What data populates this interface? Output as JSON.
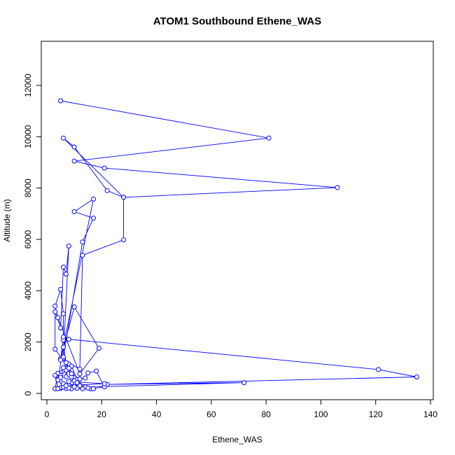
{
  "chart_data": {
    "type": "line",
    "title": "ATOM1 Southbound Ethene_WAS",
    "xlabel": "Ethene_WAS",
    "ylabel": "Altitude (m)",
    "xlim": [
      0,
      140
    ],
    "ylim": [
      0,
      12000
    ],
    "xticks": [
      0,
      20,
      40,
      60,
      80,
      100,
      120,
      140
    ],
    "yticks": [
      0,
      2000,
      4000,
      6000,
      8000,
      10000,
      12000
    ],
    "grid": false,
    "legend": "none",
    "marker": "open-circle",
    "series": [
      {
        "color": "#0000ff",
        "points": [
          [
            5,
            11400
          ],
          [
            81,
            9950
          ],
          [
            10,
            9050
          ],
          [
            21,
            8780
          ],
          [
            106,
            8020
          ],
          [
            28,
            7640
          ],
          [
            6,
            9950
          ],
          [
            10,
            9600
          ],
          [
            22,
            7900
          ],
          [
            28,
            7640
          ],
          [
            28,
            5980
          ],
          [
            13,
            5380
          ],
          [
            12,
            950
          ],
          [
            5,
            1350
          ],
          [
            10,
            3370
          ],
          [
            19,
            1760
          ],
          [
            12,
            760
          ],
          [
            4,
            2950
          ],
          [
            3,
            3400
          ],
          [
            5,
            4050
          ],
          [
            6,
            3100
          ],
          [
            6,
            2080
          ],
          [
            8,
            2110
          ],
          [
            121,
            930
          ],
          [
            135,
            640
          ],
          [
            22,
            350
          ],
          [
            72,
            420
          ],
          [
            13,
            240
          ],
          [
            3,
            1720
          ],
          [
            3,
            3180
          ],
          [
            5,
            2550
          ],
          [
            6,
            4920
          ],
          [
            7,
            4650
          ],
          [
            8,
            5740
          ],
          [
            6,
            1420
          ],
          [
            13,
            5900
          ],
          [
            17,
            6830
          ],
          [
            10,
            7080
          ],
          [
            17,
            7570
          ],
          [
            5,
            1300
          ],
          [
            6,
            2200
          ],
          [
            7,
            650
          ],
          [
            8,
            1150
          ],
          [
            4,
            780
          ],
          [
            3,
            180
          ],
          [
            5,
            200
          ],
          [
            8,
            330
          ],
          [
            9,
            420
          ],
          [
            10,
            610
          ],
          [
            12,
            320
          ],
          [
            14,
            250
          ],
          [
            16,
            180
          ],
          [
            21,
            250
          ],
          [
            18,
            870
          ],
          [
            15,
            800
          ],
          [
            14,
            600
          ],
          [
            11,
            540
          ],
          [
            9,
            1060
          ],
          [
            7,
            900
          ],
          [
            5,
            700
          ],
          [
            4,
            520
          ],
          [
            6,
            1800
          ],
          [
            7,
            1200
          ],
          [
            8,
            980
          ],
          [
            9,
            640
          ],
          [
            10,
            500
          ],
          [
            12,
            300
          ],
          [
            15,
            210
          ],
          [
            17,
            180
          ],
          [
            13,
            180
          ],
          [
            11,
            200
          ],
          [
            9,
            180
          ],
          [
            7,
            190
          ],
          [
            5,
            220
          ],
          [
            4,
            180
          ],
          [
            3,
            700
          ],
          [
            6,
            250
          ],
          [
            8,
            210
          ],
          [
            10,
            260
          ],
          [
            11,
            420
          ],
          [
            12,
            560
          ],
          [
            9,
            770
          ],
          [
            6,
            1000
          ],
          [
            5,
            620
          ],
          [
            6,
            380
          ],
          [
            7,
            300
          ],
          [
            21,
            380
          ],
          [
            8,
            460
          ]
        ]
      }
    ]
  }
}
